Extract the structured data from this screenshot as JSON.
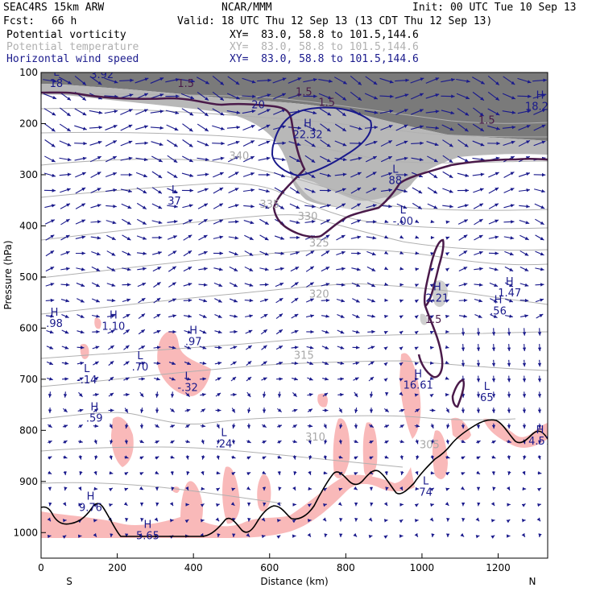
{
  "header": {
    "model": "SEAC4RS 15km ARW",
    "center": "NCAR/MMM",
    "init": "Init: 00 UTC Tue 10 Sep 13",
    "fcst_label": "Fcst:",
    "fcst_value": "66 h",
    "valid": "Valid: 18 UTC Thu 12 Sep 13 (13 CDT Thu 12 Sep 13)"
  },
  "legend": [
    {
      "name": "Potential vorticity",
      "xy": "XY=  83.0, 58.8 to 101.5,144.6",
      "color": "#000000"
    },
    {
      "name": "Potential temperature",
      "xy": "XY=  83.0, 58.8 to 101.5,144.6",
      "color": "#b0b0b0"
    },
    {
      "name": "Horizontal wind speed",
      "xy": "XY=  83.0, 58.8 to 101.5,144.6",
      "color": "#1a1a8c"
    }
  ],
  "chart_data": {
    "type": "cross-section",
    "xlabel": "Distance (km)",
    "ylabel": "Pressure (hPa)",
    "xlim": [
      0,
      1330
    ],
    "ylim": [
      1050,
      100
    ],
    "x_ticks": [
      "0",
      "200",
      "400",
      "600",
      "800",
      "1000",
      "1200"
    ],
    "y_ticks": [
      "100",
      "200",
      "300",
      "400",
      "500",
      "600",
      "700",
      "800",
      "900",
      "1000"
    ],
    "end_labels": {
      "left": "S",
      "right": "N"
    },
    "theta_contours": [
      {
        "label": "340",
        "x": 520,
        "p": 270
      },
      {
        "label": "335",
        "x": 600,
        "p": 365
      },
      {
        "label": "330",
        "x": 700,
        "p": 388
      },
      {
        "label": "325",
        "x": 730,
        "p": 440
      },
      {
        "label": "320",
        "x": 730,
        "p": 540
      },
      {
        "label": "315",
        "x": 690,
        "p": 660
      },
      {
        "label": "310",
        "x": 720,
        "p": 820
      },
      {
        "label": "305",
        "x": 1020,
        "p": 835
      }
    ],
    "pv_contour_label": "1.5",
    "pv_labels": [
      "1.5",
      "1.5",
      "1.5",
      "1.5",
      "1.5"
    ],
    "wind_contour_label": "20",
    "extrema": [
      {
        "type": "L",
        "value": "3.92",
        "x": 160,
        "p": 108
      },
      {
        "type": "L",
        "value": "18",
        "x": 40,
        "p": 125
      },
      {
        "type": "H",
        "value": "22.32",
        "x": 700,
        "p": 225
      },
      {
        "type": "H",
        "value": "18.21",
        "x": 1310,
        "p": 170
      },
      {
        "type": "L",
        "value": "37",
        "x": 350,
        "p": 355
      },
      {
        "type": "L",
        "value": "88",
        "x": 930,
        "p": 315
      },
      {
        "type": "L",
        "value": "-.00",
        "x": 950,
        "p": 395
      },
      {
        "type": "H",
        "value": "2.21",
        "x": 1040,
        "p": 545
      },
      {
        "type": "H",
        "value": "1.47",
        "x": 1230,
        "p": 535
      },
      {
        "type": "H",
        "value": ".56",
        "x": 1200,
        "p": 570
      },
      {
        "type": "H",
        "value": ".98",
        "x": 35,
        "p": 595
      },
      {
        "type": "H",
        "value": "1.10",
        "x": 190,
        "p": 600
      },
      {
        "type": "H",
        "value": ".97",
        "x": 400,
        "p": 630
      },
      {
        "type": "L",
        "value": ".70",
        "x": 260,
        "p": 680
      },
      {
        "type": "L",
        "value": "-.14",
        "x": 120,
        "p": 705
      },
      {
        "type": "L",
        "value": "-.32",
        "x": 385,
        "p": 720
      },
      {
        "type": "H",
        "value": "16.61",
        "x": 990,
        "p": 715
      },
      {
        "type": "L",
        "value": "65",
        "x": 1170,
        "p": 740
      },
      {
        "type": "H",
        "value": ".59",
        "x": 140,
        "p": 780
      },
      {
        "type": "L",
        "value": ".24",
        "x": 480,
        "p": 830
      },
      {
        "type": "H",
        "value": "4.57",
        "x": 1310,
        "p": 825
      },
      {
        "type": "L",
        "value": "74",
        "x": 1010,
        "p": 925
      },
      {
        "type": "H",
        "value": "9.76",
        "x": 130,
        "p": 955
      },
      {
        "type": "H",
        "value": "5.65",
        "x": 280,
        "p": 1010
      }
    ]
  }
}
